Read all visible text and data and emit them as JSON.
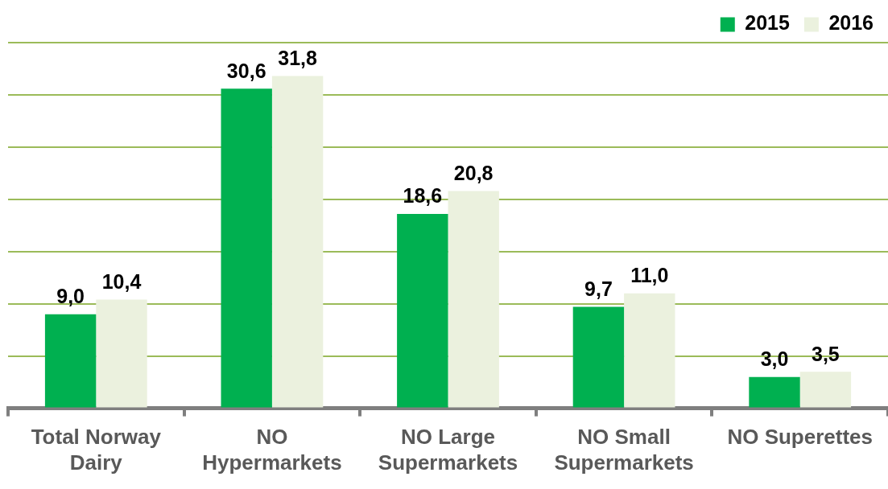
{
  "chart_data": {
    "type": "bar",
    "categories": [
      "Total Norway Dairy",
      "NO Hypermarkets",
      "NO Large Supermarkets",
      "NO Small Supermarkets",
      "NO Superettes"
    ],
    "series": [
      {
        "name": "2015",
        "color": "#00b050",
        "values": [
          9.0,
          30.6,
          18.6,
          9.7,
          3.0
        ],
        "value_labels": [
          "9,0",
          "30,6",
          "18,6",
          "9,7",
          "3,0"
        ]
      },
      {
        "name": "2016",
        "color": "#ebf1de",
        "values": [
          10.4,
          31.8,
          20.8,
          11.0,
          3.5
        ],
        "value_labels": [
          "10,4",
          "31,8",
          "20,8",
          "11,0",
          "3,5"
        ]
      }
    ],
    "ylim": [
      0,
      35
    ],
    "yticks": [
      {
        "value": 0,
        "label": null
      },
      {
        "value": 5,
        "label": null
      },
      {
        "value": 10,
        "label": null
      },
      {
        "value": 15,
        "label": null
      },
      {
        "value": 20,
        "label": null
      },
      {
        "value": 25,
        "label": null
      },
      {
        "value": 30,
        "label": null
      },
      {
        "value": 35,
        "label": null
      }
    ],
    "tick_labels": "x",
    "grid": "y",
    "legend": "top right"
  }
}
